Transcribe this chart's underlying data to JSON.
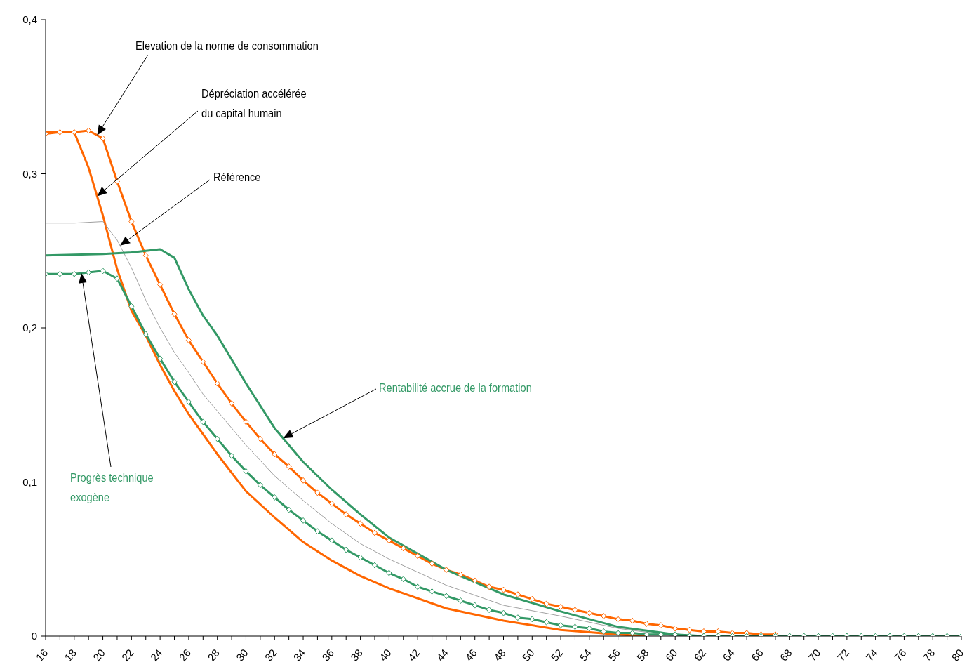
{
  "chart_data": {
    "type": "line",
    "xlim": [
      16,
      80
    ],
    "ylim": [
      0,
      0.4
    ],
    "xticks": [
      16,
      {
        "value": 17,
        "label": null
      },
      18,
      {
        "value": 19,
        "label": null
      },
      20,
      {
        "value": 21,
        "label": null
      },
      22,
      {
        "value": 23,
        "label": null
      },
      24,
      {
        "value": 25,
        "label": null
      },
      26,
      {
        "value": 27,
        "label": null
      },
      28,
      {
        "value": 29,
        "label": null
      },
      30,
      {
        "value": 31,
        "label": null
      },
      32,
      {
        "value": 33,
        "label": null
      },
      34,
      {
        "value": 35,
        "label": null
      },
      36,
      {
        "value": 37,
        "label": null
      },
      38,
      {
        "value": 39,
        "label": null
      },
      40,
      {
        "value": 41,
        "label": null
      },
      42,
      {
        "value": 43,
        "label": null
      },
      44,
      {
        "value": 45,
        "label": null
      },
      46,
      {
        "value": 47,
        "label": null
      },
      48,
      {
        "value": 49,
        "label": null
      },
      50,
      {
        "value": 51,
        "label": null
      },
      52,
      {
        "value": 53,
        "label": null
      },
      54,
      {
        "value": 55,
        "label": null
      },
      56,
      {
        "value": 57,
        "label": null
      },
      58,
      {
        "value": 59,
        "label": null
      },
      60,
      {
        "value": 61,
        "label": null
      },
      62,
      {
        "value": 63,
        "label": null
      },
      64,
      {
        "value": 65,
        "label": null
      },
      66,
      {
        "value": 67,
        "label": null
      },
      68,
      {
        "value": 69,
        "label": null
      },
      70,
      {
        "value": 71,
        "label": null
      },
      72,
      {
        "value": 73,
        "label": null
      },
      74,
      {
        "value": 75,
        "label": null
      },
      76,
      {
        "value": 77,
        "label": null
      },
      78,
      {
        "value": 79,
        "label": null
      },
      80
    ],
    "yticks": [
      0,
      {
        "value": 0.1,
        "label": "0,1"
      },
      {
        "value": 0.2,
        "label": "0,2"
      },
      {
        "value": 0.3,
        "label": "0,3"
      },
      {
        "value": 0.4,
        "label": "0,4"
      }
    ],
    "line_style": "solid",
    "series": [
      {
        "name": "Elevation de la norme de consommation",
        "color": "#ff6600",
        "marker": "diamond",
        "x": [
          16,
          17,
          18,
          19,
          20,
          21,
          22,
          23,
          24,
          25,
          26,
          27,
          28,
          29,
          30,
          31,
          32,
          33,
          34,
          35,
          36,
          37,
          38,
          39,
          40,
          41,
          42,
          43,
          44,
          45,
          46,
          47,
          48,
          49,
          50,
          51,
          52,
          53,
          54,
          55,
          56,
          57,
          58,
          59,
          60,
          61,
          62,
          63,
          64,
          65,
          66,
          67
        ],
        "values": [
          0.326,
          0.327,
          0.327,
          0.328,
          0.323,
          0.295,
          0.269,
          0.247,
          0.228,
          0.209,
          0.192,
          0.178,
          0.164,
          0.151,
          0.139,
          0.128,
          0.118,
          0.11,
          0.101,
          0.093,
          0.086,
          0.079,
          0.073,
          0.067,
          0.062,
          0.057,
          0.052,
          0.047,
          0.043,
          0.04,
          0.036,
          0.032,
          0.03,
          0.027,
          0.024,
          0.021,
          0.019,
          0.017,
          0.015,
          0.013,
          0.011,
          0.01,
          0.008,
          0.007,
          0.005,
          0.004,
          0.003,
          0.003,
          0.002,
          0.002,
          0.001,
          0.001
        ]
      },
      {
        "name": "Dépréciation accélérée du capital humain",
        "color": "#ff6600",
        "marker": "none",
        "x": [
          16,
          17,
          18,
          19,
          20,
          21,
          22,
          23,
          24,
          25,
          26,
          27,
          28,
          30,
          32,
          34,
          36,
          38,
          40,
          44,
          48,
          52,
          56,
          58
        ],
        "values": [
          0.327,
          0.327,
          0.327,
          0.304,
          0.273,
          0.238,
          0.211,
          0.195,
          0.176,
          0.159,
          0.144,
          0.131,
          0.118,
          0.094,
          0.077,
          0.061,
          0.049,
          0.039,
          0.031,
          0.018,
          0.01,
          0.004,
          0.001,
          0
        ]
      },
      {
        "name": "Référence",
        "color": "#a0a0a0",
        "marker": "none",
        "x": [
          16,
          18,
          20,
          21,
          22,
          23,
          24,
          25,
          26,
          27,
          28,
          30,
          32,
          34,
          36,
          38,
          40,
          44,
          48,
          52,
          56,
          60
        ],
        "values": [
          0.268,
          0.268,
          0.269,
          0.257,
          0.239,
          0.218,
          0.2,
          0.184,
          0.171,
          0.157,
          0.146,
          0.124,
          0.104,
          0.088,
          0.073,
          0.06,
          0.05,
          0.033,
          0.02,
          0.013,
          0.005,
          0
        ]
      },
      {
        "name": "Rentabilité accrue de la formation",
        "color": "#339966",
        "marker": "none",
        "x": [
          16,
          20,
          22,
          24,
          25,
          26,
          27,
          28,
          30,
          32,
          34,
          36,
          38,
          40,
          44,
          48,
          52,
          56,
          60,
          62
        ],
        "values": [
          0.247,
          0.248,
          0.249,
          0.251,
          0.2455,
          0.225,
          0.208,
          0.195,
          0.164,
          0.135,
          0.113,
          0.095,
          0.079,
          0.064,
          0.043,
          0.027,
          0.016,
          0.006,
          0.001,
          0
        ]
      },
      {
        "name": "Progrès technique exogène",
        "color": "#339966",
        "marker": "diamond",
        "x": [
          16,
          17,
          18,
          19,
          20,
          21,
          22,
          23,
          24,
          25,
          26,
          27,
          28,
          29,
          30,
          31,
          32,
          33,
          34,
          35,
          36,
          37,
          38,
          39,
          40,
          41,
          42,
          43,
          44,
          45,
          46,
          47,
          48,
          49,
          50,
          51,
          52,
          53,
          54,
          55,
          56,
          57,
          58,
          59,
          60,
          61,
          62,
          63,
          64,
          65,
          66,
          67,
          68,
          69,
          70,
          71,
          72,
          73,
          74,
          75,
          76,
          77,
          78,
          79,
          80
        ],
        "values": [
          0.235,
          0.235,
          0.235,
          0.236,
          0.237,
          0.232,
          0.214,
          0.196,
          0.18,
          0.165,
          0.152,
          0.139,
          0.128,
          0.117,
          0.107,
          0.098,
          0.09,
          0.082,
          0.075,
          0.068,
          0.062,
          0.056,
          0.051,
          0.046,
          0.041,
          0.037,
          0.032,
          0.029,
          0.026,
          0.023,
          0.02,
          0.017,
          0.015,
          0.012,
          0.011,
          0.009,
          0.007,
          0.006,
          0.005,
          0.003,
          0.002,
          0.002,
          0.001,
          0.001,
          0.001,
          0,
          0,
          0,
          0,
          0,
          0,
          0,
          0,
          0,
          0,
          0,
          0,
          0,
          0,
          0,
          0,
          0,
          0,
          0,
          0
        ]
      }
    ]
  }
}
